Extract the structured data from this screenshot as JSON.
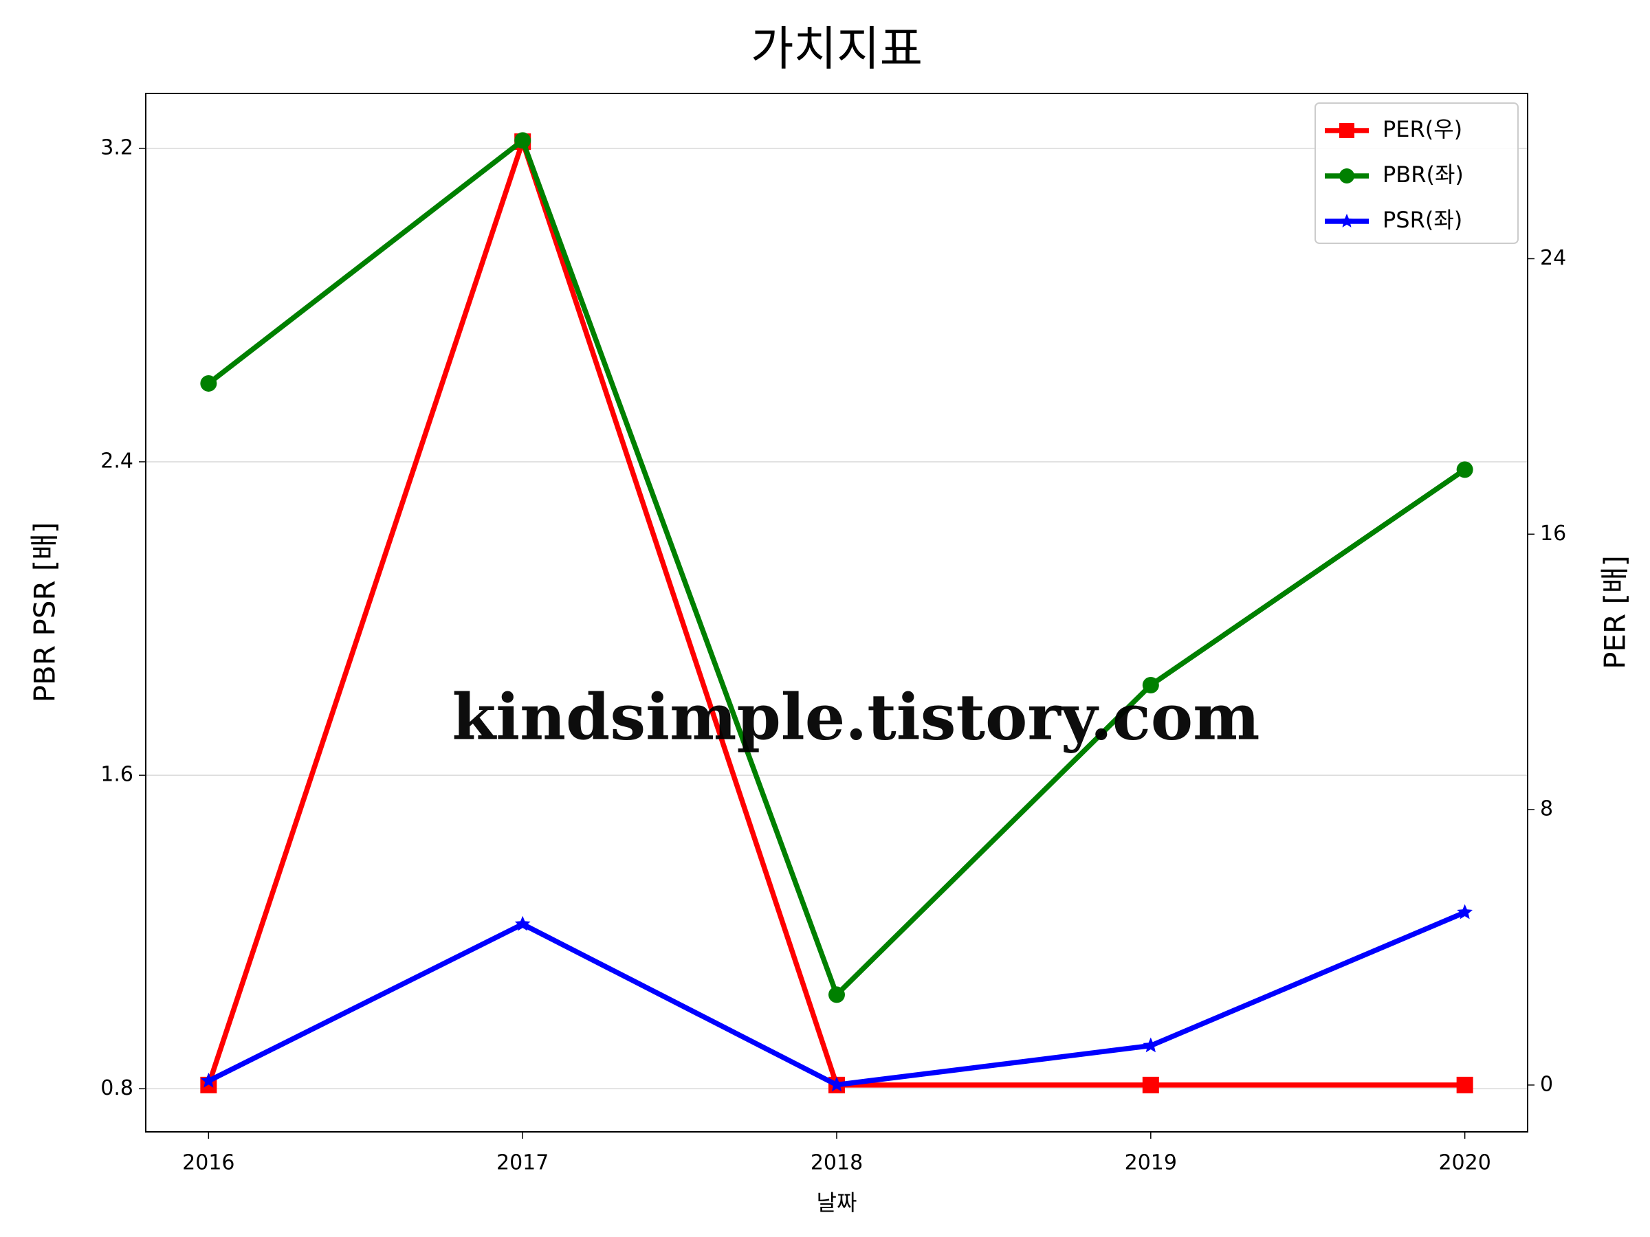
{
  "chart_data": {
    "type": "line",
    "title": "가치지표",
    "x_label": "날짜",
    "y_label": "PBR PSR [배]",
    "y2_label": "PER [배]",
    "watermark": "kindsimple.tistory.com",
    "x": [
      2016,
      2017,
      2018,
      2019,
      2020
    ],
    "xlim": [
      2015.8,
      2020.2
    ],
    "xticks": [
      2016,
      2017,
      2018,
      2019,
      2020
    ],
    "ylim": [
      0.69,
      3.34
    ],
    "yticks": [
      0.8,
      1.6,
      2.4,
      3.2
    ],
    "y2lim": [
      -1.36,
      28.8
    ],
    "y2ticks": [
      0,
      8,
      16,
      24
    ],
    "grid": true,
    "legend": "upper right",
    "y_label_color": "#008000",
    "y2_label_color": "#ff0000",
    "series": [
      {
        "name": "PER(우)",
        "color": "#ff0000",
        "marker": "square",
        "axis": "y2",
        "values": [
          0,
          27.4,
          0,
          0,
          0
        ]
      },
      {
        "name": "PBR(좌)",
        "color": "#008000",
        "marker": "circle",
        "axis": "y",
        "values": [
          2.6,
          3.22,
          1.04,
          1.83,
          2.38
        ]
      },
      {
        "name": "PSR(좌)",
        "color": "#0000ff",
        "marker": "star",
        "axis": "y",
        "values": [
          0.82,
          1.22,
          0.81,
          0.91,
          1.25
        ]
      }
    ]
  }
}
